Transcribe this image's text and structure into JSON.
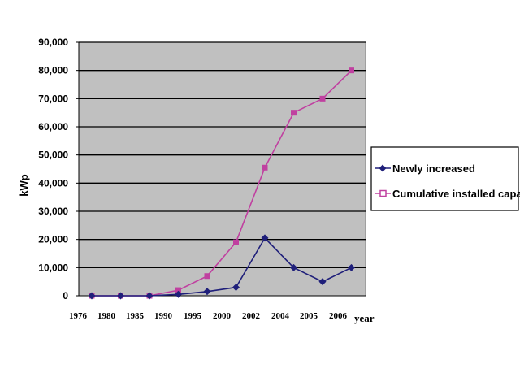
{
  "chart_data": {
    "type": "line",
    "title": "",
    "xlabel": "year",
    "ylabel": "kWp",
    "ylim": [
      0,
      90000
    ],
    "y_ticks": [
      "0",
      "10,000",
      "20,000",
      "30,000",
      "40,000",
      "50,000",
      "60,000",
      "70,000",
      "80,000",
      "90,000"
    ],
    "categories": [
      "1976",
      "1980",
      "1985",
      "1990",
      "1995",
      "2000",
      "2002",
      "2004",
      "2005",
      "2006"
    ],
    "grid": true,
    "legend_position": "right",
    "colors": {
      "plot_bg": "#c0c0c0",
      "gridline": "#000000"
    },
    "series": [
      {
        "name": "Newly increased",
        "color": "#1f1f7a",
        "marker": "diamond",
        "x": [
          1.0,
          2.0,
          3.0,
          4.0,
          5.0,
          6.0,
          7.0,
          8.0,
          9.0,
          10.0
        ],
        "values": [
          0,
          0,
          0,
          500,
          1500,
          3000,
          20500,
          10000,
          5000,
          10000
        ]
      },
      {
        "name": "Cumulative installed capacity",
        "color": "#c040a0",
        "marker": "square",
        "x": [
          1.0,
          2.0,
          3.0,
          4.0,
          5.0,
          6.0,
          7.0,
          8.0,
          9.0,
          10.0
        ],
        "values": [
          0,
          0,
          0,
          2000,
          7000,
          19000,
          45500,
          65000,
          70000,
          80000
        ]
      }
    ]
  }
}
